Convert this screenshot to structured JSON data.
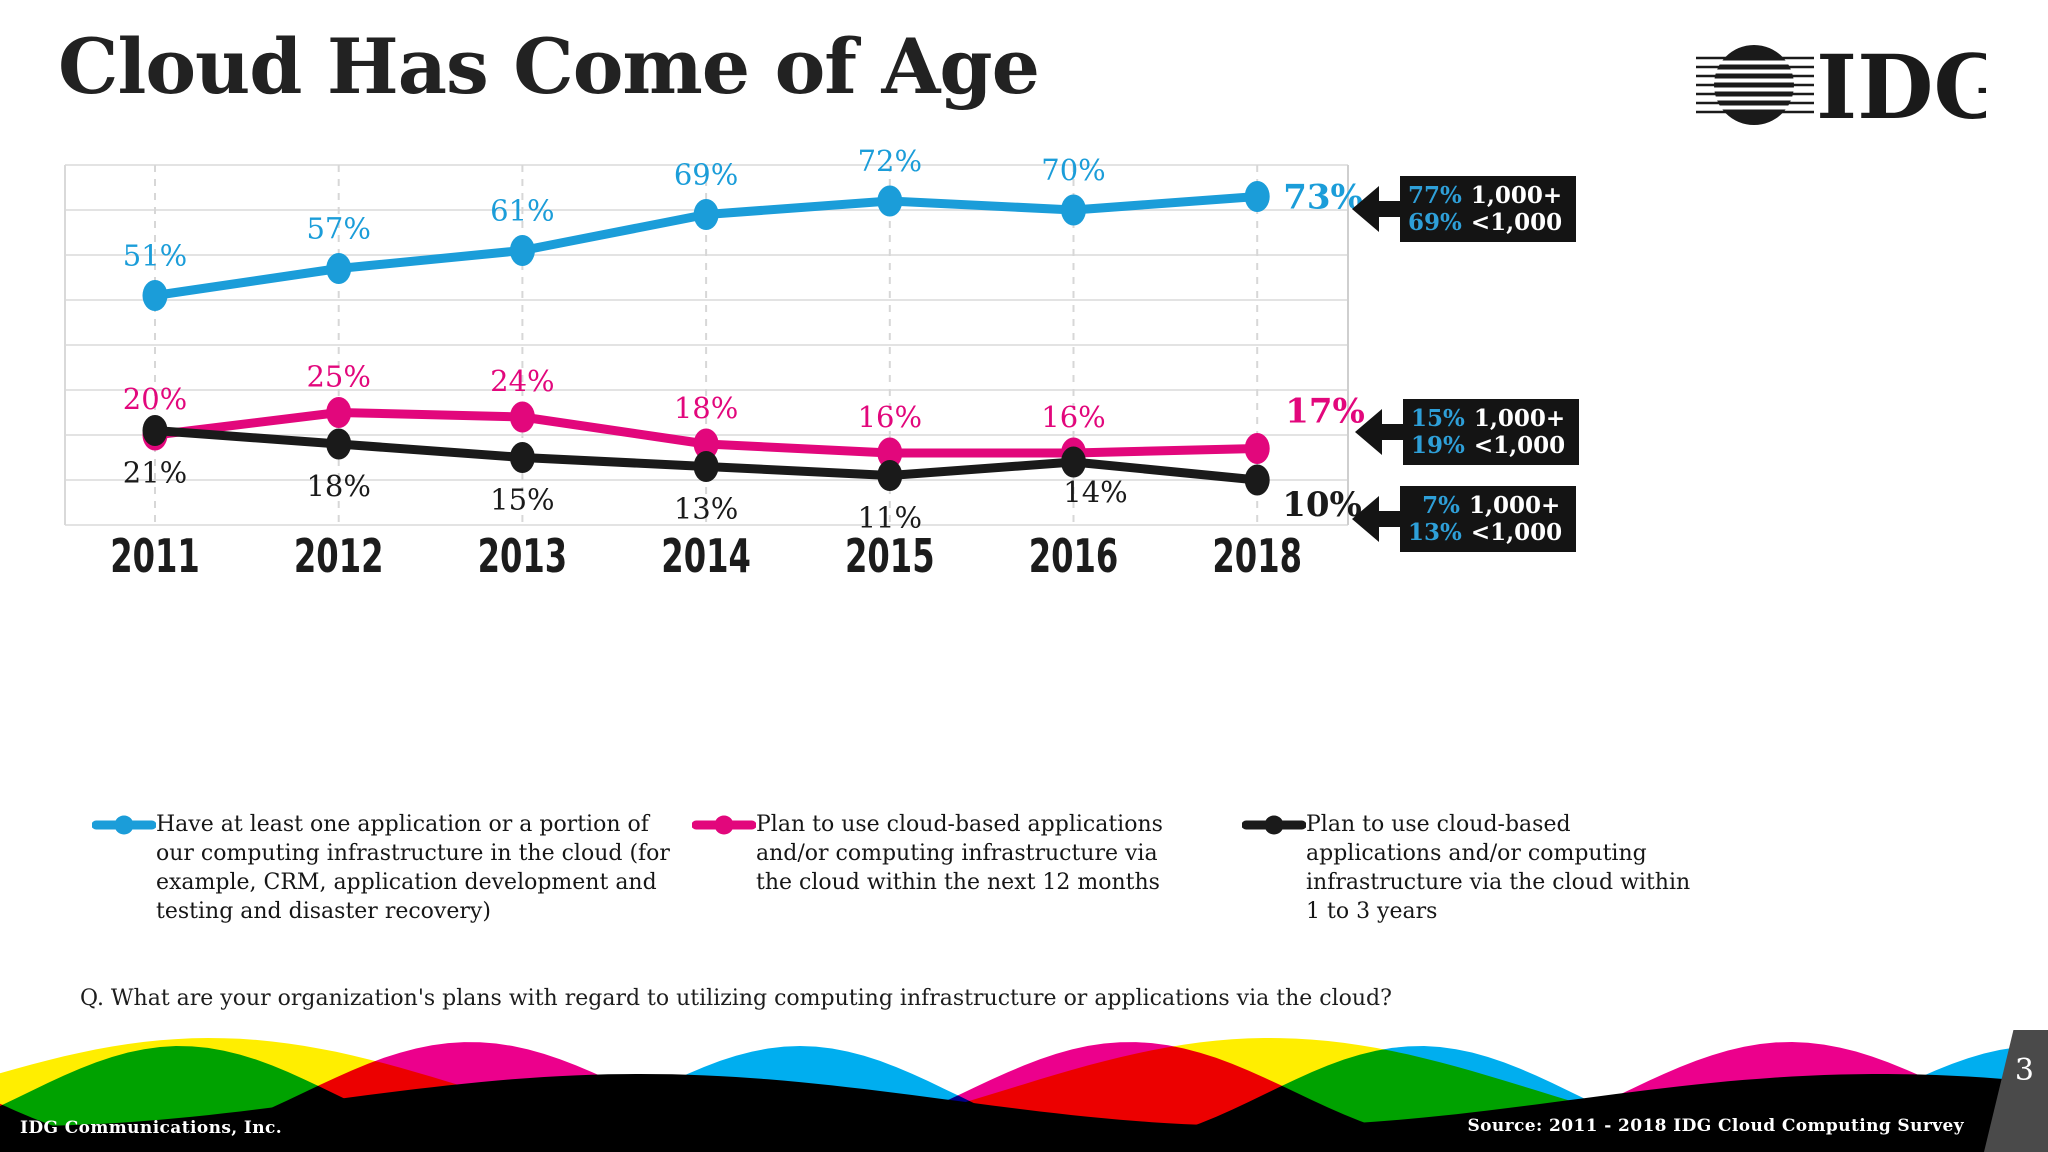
{
  "slide": {
    "title": "Cloud Has Come of Age",
    "page_number": "3",
    "question": "Q. What are your organization's plans with regard to utilizing computing infrastructure or applications via the cloud?",
    "footer_left": "IDG Communications, Inc.",
    "footer_right": "Source: 2011 - 2018 IDG Cloud Computing Survey"
  },
  "logo": {
    "text": "IDG",
    "icon": "striped-globe-icon"
  },
  "colors": {
    "blue": "#1b9dd9",
    "pink": "#e2077c",
    "black": "#1a1a1a",
    "callout_bg": "#141414",
    "callout_value_blue": "#2e9fd8",
    "grid": "#e3e3e3",
    "grid_dashed": "#d7d7d7",
    "footer_yellow": "#ffee00",
    "footer_magenta": "#ec008c",
    "footer_cyan": "#00aeef",
    "footer_black": "#000000",
    "tab_bg": "#4a4a4a"
  },
  "chart_data": {
    "type": "line",
    "title": "",
    "xlabel": "",
    "ylabel": "",
    "categories": [
      "2011",
      "2012",
      "2013",
      "2014",
      "2015",
      "2016",
      "2018"
    ],
    "series": [
      {
        "name": "Have at least one application or a portion of our computing infrastructure in the cloud (for example, CRM, application development and testing and disaster recovery)",
        "color_key": "blue",
        "values": [
          51,
          57,
          61,
          69,
          72,
          70,
          73
        ]
      },
      {
        "name": "Plan to use cloud-based applications and/or computing infrastructure via the cloud within the next 12 months",
        "color_key": "pink",
        "values": [
          20,
          25,
          24,
          18,
          16,
          16,
          17
        ]
      },
      {
        "name": "Plan to use cloud-based applications and/or computing infrastructure via the cloud within 1 to 3 years",
        "color_key": "black",
        "values": [
          21,
          18,
          15,
          13,
          11,
          14,
          10
        ]
      }
    ],
    "value_suffix": "%",
    "ylim": [
      0,
      80
    ],
    "grid": true,
    "vertical_grid": "dashed",
    "legend_position": "bottom"
  },
  "callouts": [
    {
      "line1_value": "77%",
      "line1_label": "1,000+",
      "line2_value": "69%",
      "line2_label": "<1,000"
    },
    {
      "line1_value": "15%",
      "line1_label": "1,000+",
      "line2_value": "19%",
      "line2_label": "<1,000"
    },
    {
      "line1_value": "7%",
      "line1_label": "1,000+",
      "line2_value": "13%",
      "line2_label": "<1,000"
    }
  ]
}
